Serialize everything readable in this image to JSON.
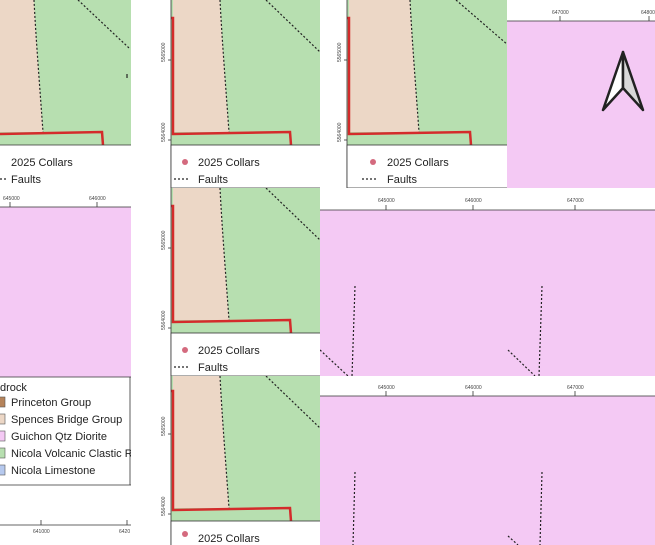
{
  "legend": {
    "collars": "2025 Collars",
    "faults": "Faults",
    "bedrock_heading": "drock",
    "units": [
      {
        "label": "Princeton Group",
        "color": "#b5835a"
      },
      {
        "label": "Spences Bridge Group",
        "color": "#ecd7c6"
      },
      {
        "label": "Guichon Qtz Diorite",
        "color": "#f4c9f4"
      },
      {
        "label": "Nicola Volcanic Clastic Ro",
        "color": "#b7dfb0"
      },
      {
        "label": "Nicola Limestone",
        "color": "#b6c9ee"
      }
    ]
  },
  "ticks": {
    "e645": "645000",
    "e646": "646000",
    "e647": "647000",
    "e648": "648000",
    "e641": "641000",
    "e642": "6420",
    "n5565": "5565000",
    "n5564": "5564000"
  },
  "colors": {
    "diorite": "#f4c9f4",
    "spences": "#ecd7c6",
    "nicola": "#b7dfb0",
    "boundary": "#d42b2b",
    "collar": "#d46a7e"
  },
  "icons": [
    "north-arrow-icon",
    "collar-marker-icon",
    "fault-line-icon"
  ]
}
